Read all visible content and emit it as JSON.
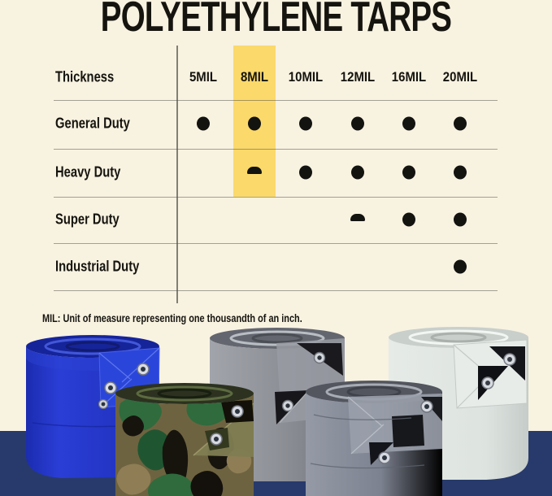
{
  "title": "POLYETHYLENE TARPS",
  "table": {
    "corner_label": "Thickness",
    "columns": [
      "5MIL",
      "8MIL",
      "10MIL",
      "12MIL",
      "16MIL",
      "20MIL"
    ],
    "highlighted_column": "8MIL",
    "rows": [
      {
        "label": "General Duty",
        "cells": [
          "full",
          "full",
          "full",
          "full",
          "full",
          "full"
        ]
      },
      {
        "label": "Heavy Duty",
        "cells": [
          "",
          "half",
          "full",
          "full",
          "full",
          "full"
        ]
      },
      {
        "label": "Super Duty",
        "cells": [
          "",
          "",
          "",
          "half",
          "full",
          "full"
        ]
      },
      {
        "label": "Industrial Duty",
        "cells": [
          "",
          "",
          "",
          "",
          "",
          "full"
        ]
      }
    ]
  },
  "footnote": "MIL: Unit of measure representing one thousandth of an inch.",
  "colors": {
    "background": "#f8f2e1",
    "highlight": "#fbd96b",
    "dot": "#131310",
    "text": "#15140e",
    "grid_line": "#7d7d72",
    "navy_band": "#283a6b",
    "blue_tarp": "#2336c6",
    "camo_tarp_base": "#6e6340",
    "gray_tarp": "#8f9198",
    "silver_tarp": "#7c8290",
    "white_tarp": "#dde3df"
  },
  "chart_data": {
    "type": "table",
    "title": "POLYETHYLENE TARPS",
    "columns": [
      "5MIL",
      "8MIL",
      "10MIL",
      "12MIL",
      "16MIL",
      "20MIL"
    ],
    "rows": [
      "General Duty",
      "Heavy Duty",
      "Super Duty",
      "Industrial Duty"
    ],
    "matrix": [
      [
        1,
        1,
        1,
        1,
        1,
        1
      ],
      [
        0,
        0.5,
        1,
        1,
        1,
        1
      ],
      [
        0,
        0,
        0,
        0.5,
        1,
        1
      ],
      [
        0,
        0,
        0,
        0,
        0,
        1
      ]
    ],
    "legend": "1 = full dot (available), 0.5 = half dot, 0 = empty",
    "highlighted_column": "8MIL",
    "footnote": "MIL: Unit of measure representing one thousandth of an inch."
  },
  "tarps": [
    {
      "name": "blue-tarp-roll",
      "color": "#2336c6"
    },
    {
      "name": "camo-tarp-roll",
      "color": "#6e6340"
    },
    {
      "name": "gray-tarp-roll",
      "color": "#8f9198"
    },
    {
      "name": "silver-tarp-roll",
      "color": "#7c8290"
    },
    {
      "name": "white-tarp-roll",
      "color": "#dde3df"
    }
  ]
}
